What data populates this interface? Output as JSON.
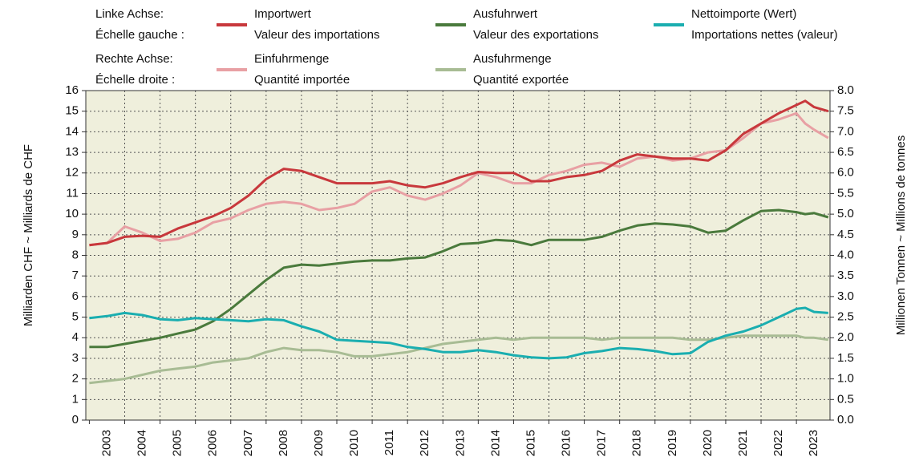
{
  "chart_data": {
    "type": "line",
    "y_label": "Milliarden CHF   ~   Milliards de CHF",
    "y2_label": "Millionen Tonnen   ~   Millions de tonnes",
    "legend_left_label": [
      "Linke Achse:",
      "Échelle gauche :"
    ],
    "legend_right_label": [
      "Rechte Achse:",
      "Échelle droite :"
    ],
    "x": [
      2003,
      2003.5,
      2004,
      2004.5,
      2005,
      2005.5,
      2006,
      2006.5,
      2007,
      2007.5,
      2008,
      2008.5,
      2009,
      2009.5,
      2010,
      2010.5,
      2011,
      2011.5,
      2012,
      2012.5,
      2013,
      2013.5,
      2014,
      2014.5,
      2015,
      2015.5,
      2016,
      2016.5,
      2017,
      2017.5,
      2018,
      2018.5,
      2019,
      2019.5,
      2020,
      2020.5,
      2021,
      2021.5,
      2022,
      2022.5,
      2023,
      2023.25,
      2023.5,
      2023.9
    ],
    "xlim": [
      2002.9,
      2023.95
    ],
    "xticks": [
      2003,
      2004,
      2005,
      2006,
      2007,
      2008,
      2009,
      2010,
      2011,
      2012,
      2013,
      2014,
      2015,
      2016,
      2017,
      2018,
      2019,
      2020,
      2021,
      2022,
      2023
    ],
    "ylim": [
      0,
      16
    ],
    "yticks": [
      0,
      1,
      2,
      3,
      4,
      5,
      6,
      7,
      8,
      9,
      10,
      11,
      12,
      13,
      14,
      15,
      16
    ],
    "y2lim": [
      0,
      8
    ],
    "y2ticks": [
      {
        "value": 0,
        "label": "0.0"
      },
      0.5,
      {
        "value": 1,
        "label": "1.0"
      },
      1.5,
      {
        "value": 2,
        "label": "2.0"
      },
      2.5,
      {
        "value": 3,
        "label": "3.0"
      },
      3.5,
      {
        "value": 4,
        "label": "4.0"
      },
      4.5,
      {
        "value": 5,
        "label": "5.0"
      },
      5.5,
      {
        "value": 6,
        "label": "6.0"
      },
      6.5,
      {
        "value": 7,
        "label": "7.0"
      },
      7.5,
      {
        "value": 8,
        "label": "8.0"
      }
    ],
    "grid": true,
    "series": [
      {
        "name": "Importwert",
        "name_fr": "Valeur des importations",
        "color": "#c8383c",
        "axis": "y",
        "values": [
          8.5,
          8.6,
          8.9,
          8.95,
          8.9,
          9.3,
          9.6,
          9.9,
          10.3,
          10.9,
          11.7,
          12.2,
          12.1,
          11.8,
          11.5,
          11.5,
          11.5,
          11.6,
          11.4,
          11.3,
          11.5,
          11.8,
          12.05,
          12.0,
          12.0,
          11.6,
          11.6,
          11.8,
          11.9,
          12.1,
          12.6,
          12.9,
          12.8,
          12.7,
          12.7,
          12.6,
          13.1,
          13.9,
          14.4,
          14.9,
          15.3,
          15.5,
          15.2,
          15.0
        ]
      },
      {
        "name": "Ausfuhrwert",
        "name_fr": "Valeur des exportations",
        "color": "#4a7a3c",
        "axis": "y",
        "values": [
          3.55,
          3.55,
          3.7,
          3.85,
          4.0,
          4.2,
          4.4,
          4.8,
          5.4,
          6.1,
          6.8,
          7.4,
          7.55,
          7.5,
          7.6,
          7.7,
          7.75,
          7.75,
          7.85,
          7.9,
          8.2,
          8.55,
          8.6,
          8.75,
          8.7,
          8.5,
          8.75,
          8.75,
          8.75,
          8.9,
          9.2,
          9.45,
          9.55,
          9.5,
          9.4,
          9.1,
          9.2,
          9.7,
          10.15,
          10.2,
          10.1,
          10.0,
          10.05,
          9.85
        ]
      },
      {
        "name": "Nettoimporte (Wert)",
        "name_fr": "Importations nettes (valeur)",
        "color": "#1aaeb0",
        "axis": "y",
        "values": [
          4.95,
          5.05,
          5.2,
          5.1,
          4.9,
          4.85,
          4.95,
          4.9,
          4.85,
          4.8,
          4.9,
          4.85,
          4.55,
          4.3,
          3.9,
          3.85,
          3.8,
          3.75,
          3.55,
          3.45,
          3.3,
          3.3,
          3.4,
          3.3,
          3.15,
          3.05,
          3.0,
          3.05,
          3.25,
          3.35,
          3.5,
          3.45,
          3.35,
          3.2,
          3.25,
          3.8,
          4.1,
          4.3,
          4.6,
          5.0,
          5.4,
          5.45,
          5.25,
          5.2
        ]
      },
      {
        "name": "Einfuhrmenge",
        "name_fr": "Quantité importée",
        "color": "#e8a0a4",
        "axis": "y2",
        "values": [
          4.25,
          4.3,
          4.7,
          4.55,
          4.35,
          4.4,
          4.55,
          4.8,
          4.9,
          5.1,
          5.25,
          5.3,
          5.25,
          5.1,
          5.15,
          5.25,
          5.55,
          5.65,
          5.45,
          5.35,
          5.5,
          5.7,
          6.0,
          5.9,
          5.75,
          5.75,
          5.95,
          6.05,
          6.2,
          6.25,
          6.15,
          6.35,
          6.4,
          6.3,
          6.35,
          6.5,
          6.55,
          6.85,
          7.2,
          7.3,
          7.45,
          7.2,
          7.05,
          6.85
        ]
      },
      {
        "name": "Ausfuhrmenge",
        "name_fr": "Quantité exportée",
        "color": "#a8bc94",
        "axis": "y2",
        "values": [
          0.9,
          0.95,
          1.0,
          1.1,
          1.2,
          1.25,
          1.3,
          1.4,
          1.45,
          1.5,
          1.65,
          1.75,
          1.7,
          1.7,
          1.65,
          1.55,
          1.55,
          1.6,
          1.65,
          1.75,
          1.85,
          1.9,
          1.95,
          2.0,
          1.95,
          2.0,
          2.0,
          2.0,
          2.0,
          1.95,
          2.0,
          2.0,
          2.0,
          2.0,
          1.95,
          1.95,
          2.0,
          2.05,
          2.05,
          2.05,
          2.05,
          2.0,
          2.0,
          1.95
        ]
      }
    ]
  }
}
